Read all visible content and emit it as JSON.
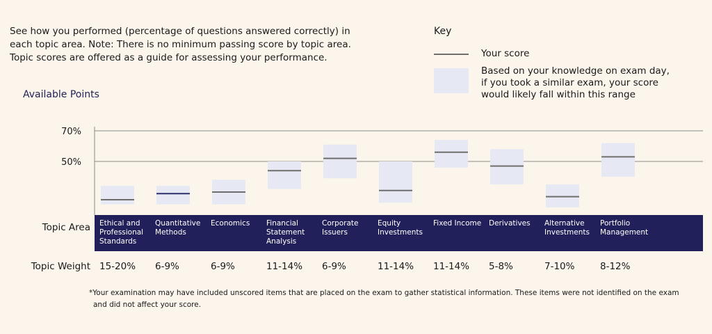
{
  "intro": {
    "line1": "See how you performed (percentage of questions answered correctly) in",
    "line2": "each topic area. Note: There is no minimum passing score by topic area.",
    "line3": "Topic scores are offered as a guide for assessing your performance."
  },
  "key": {
    "title": "Key",
    "score_label": "Your score",
    "range_line1": "Based on your knowledge on exam day,",
    "range_line2": "if you took a similar exam, your score",
    "range_line3": "would likely fall within this range"
  },
  "labels": {
    "available_points": "Available Points",
    "topic_area": "Topic Area",
    "topic_weight": "Topic Weight"
  },
  "footnote": {
    "line1": "*Your examination may have included unscored items that are placed on the exam to gather statistical information. These items were not identified on the exam",
    "line2": "and did not affect your score."
  },
  "colors": {
    "range": "#e6e8f4",
    "score_line": "#6e6e6e",
    "score_line_highlight": "#2f2f6e",
    "band": "#22205a",
    "background": "#fbf5ec"
  },
  "chart_data": {
    "type": "range",
    "yticks": [
      {
        "label": "70%",
        "value": 70
      },
      {
        "label": "50%",
        "value": 50
      }
    ],
    "grid": "horizontal",
    "categories": [
      {
        "lines": [
          "Ethical and",
          "Professional",
          "Standards"
        ],
        "weight": "15-20%",
        "score": 25,
        "low": 22,
        "high": 34
      },
      {
        "lines": [
          "Quantitative",
          "Methods"
        ],
        "weight": "6-9%",
        "score": 29,
        "low": 22,
        "high": 34
      },
      {
        "lines": [
          "Economics"
        ],
        "weight": "6-9%",
        "score": 30,
        "low": 22,
        "high": 38
      },
      {
        "lines": [
          "Financial",
          "Statement",
          "Analysis"
        ],
        "weight": "11-14%",
        "score": 44,
        "low": 32,
        "high": 50
      },
      {
        "lines": [
          "Corporate",
          "Issuers"
        ],
        "weight": "6-9%",
        "score": 52,
        "low": 39,
        "high": 61
      },
      {
        "lines": [
          "Equity",
          "Investments"
        ],
        "weight": "11-14%",
        "score": 31,
        "low": 23,
        "high": 50
      },
      {
        "lines": [
          "Fixed Income"
        ],
        "weight": "11-14%",
        "score": 56,
        "low": 46,
        "high": 64
      },
      {
        "lines": [
          "Derivatives"
        ],
        "weight": "5-8%",
        "score": 47,
        "low": 35,
        "high": 58
      },
      {
        "lines": [
          "Alternative",
          "Investments"
        ],
        "weight": "7-10%",
        "score": 27,
        "low": 20,
        "high": 35
      },
      {
        "lines": [
          "Portfolio",
          "Management"
        ],
        "weight": "8-12%",
        "score": 53,
        "low": 40,
        "high": 62
      }
    ]
  }
}
